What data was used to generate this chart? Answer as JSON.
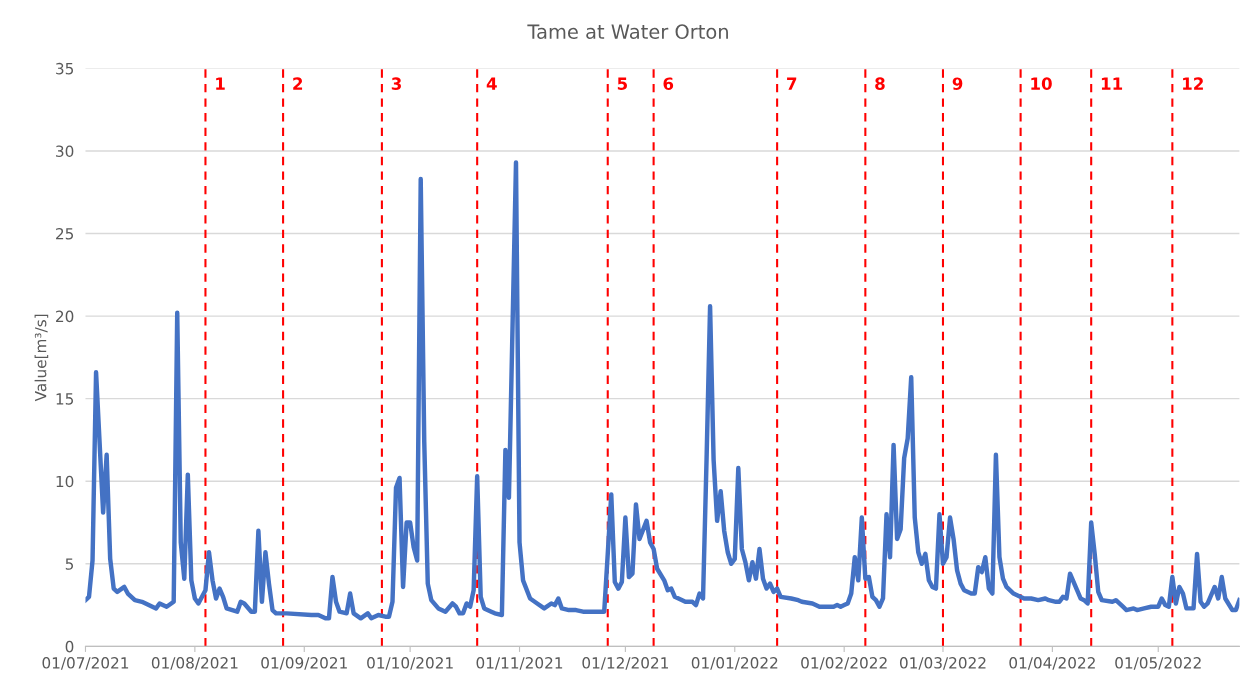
{
  "chart_data": {
    "type": "line",
    "title": "Tame at Water Orton",
    "ylabel": "Value[m³/s]",
    "series": [
      {
        "color": "#4472c4",
        "x": [
          "2021-07-01",
          "2021-07-02",
          "2021-07-03",
          "2021-07-04",
          "2021-07-06",
          "2021-07-07",
          "2021-07-08",
          "2021-07-09",
          "2021-07-10",
          "2021-07-12",
          "2021-07-13",
          "2021-07-15",
          "2021-07-17",
          "2021-07-21",
          "2021-07-22",
          "2021-07-24",
          "2021-07-26",
          "2021-07-27",
          "2021-07-28",
          "2021-07-29",
          "2021-07-30",
          "2021-07-31",
          "2021-08-01",
          "2021-08-02",
          "2021-08-04",
          "2021-08-05",
          "2021-08-06",
          "2021-08-07",
          "2021-08-08",
          "2021-08-09",
          "2021-08-10",
          "2021-08-13",
          "2021-08-14",
          "2021-08-15",
          "2021-08-17",
          "2021-08-18",
          "2021-08-19",
          "2021-08-20",
          "2021-08-21",
          "2021-08-22",
          "2021-08-23",
          "2021-08-24",
          "2021-08-27",
          "2021-09-03",
          "2021-09-05",
          "2021-09-07",
          "2021-09-08",
          "2021-09-09",
          "2021-09-10",
          "2021-09-11",
          "2021-09-13",
          "2021-09-14",
          "2021-09-15",
          "2021-09-17",
          "2021-09-19",
          "2021-09-20",
          "2021-09-22",
          "2021-09-24",
          "2021-09-25",
          "2021-09-26",
          "2021-09-27",
          "2021-09-28",
          "2021-09-29",
          "2021-09-30",
          "2021-10-01",
          "2021-10-02",
          "2021-10-03",
          "2021-10-04",
          "2021-10-05",
          "2021-10-06",
          "2021-10-07",
          "2021-10-09",
          "2021-10-11",
          "2021-10-13",
          "2021-10-14",
          "2021-10-15",
          "2021-10-16",
          "2021-10-17",
          "2021-10-18",
          "2021-10-19",
          "2021-10-20",
          "2021-10-21",
          "2021-10-22",
          "2021-10-24",
          "2021-10-25",
          "2021-10-27",
          "2021-10-28",
          "2021-10-29",
          "2021-10-31",
          "2021-11-01",
          "2021-11-02",
          "2021-11-04",
          "2021-11-06",
          "2021-11-08",
          "2021-11-10",
          "2021-11-11",
          "2021-11-12",
          "2021-11-13",
          "2021-11-15",
          "2021-11-17",
          "2021-11-19",
          "2021-11-21",
          "2021-11-23",
          "2021-11-25",
          "2021-11-26",
          "2021-11-27",
          "2021-11-28",
          "2021-11-29",
          "2021-11-30",
          "2021-12-01",
          "2021-12-02",
          "2021-12-03",
          "2021-12-04",
          "2021-12-05",
          "2021-12-07",
          "2021-12-08",
          "2021-12-09",
          "2021-12-10",
          "2021-12-12",
          "2021-12-13",
          "2021-12-14",
          "2021-12-15",
          "2021-12-18",
          "2021-12-20",
          "2021-12-21",
          "2021-12-22",
          "2021-12-23",
          "2021-12-24",
          "2021-12-25",
          "2021-12-26",
          "2021-12-27",
          "2021-12-28",
          "2021-12-29",
          "2021-12-30",
          "2021-12-31",
          "2022-01-01",
          "2022-01-02",
          "2022-01-03",
          "2022-01-04",
          "2022-01-05",
          "2022-01-06",
          "2022-01-07",
          "2022-01-08",
          "2022-01-09",
          "2022-01-10",
          "2022-01-11",
          "2022-01-12",
          "2022-01-13",
          "2022-01-14",
          "2022-01-17",
          "2022-01-19",
          "2022-01-20",
          "2022-01-23",
          "2022-01-25",
          "2022-01-27",
          "2022-01-29",
          "2022-01-30",
          "2022-01-31",
          "2022-02-01",
          "2022-02-02",
          "2022-02-03",
          "2022-02-04",
          "2022-02-05",
          "2022-02-06",
          "2022-02-07",
          "2022-02-08",
          "2022-02-09",
          "2022-02-10",
          "2022-02-11",
          "2022-02-12",
          "2022-02-13",
          "2022-02-14",
          "2022-02-15",
          "2022-02-16",
          "2022-02-17",
          "2022-02-18",
          "2022-02-19",
          "2022-02-20",
          "2022-02-21",
          "2022-02-22",
          "2022-02-23",
          "2022-02-24",
          "2022-02-25",
          "2022-02-26",
          "2022-02-27",
          "2022-02-28",
          "2022-03-01",
          "2022-03-02",
          "2022-03-03",
          "2022-03-04",
          "2022-03-05",
          "2022-03-06",
          "2022-03-07",
          "2022-03-09",
          "2022-03-10",
          "2022-03-11",
          "2022-03-12",
          "2022-03-13",
          "2022-03-14",
          "2022-03-15",
          "2022-03-16",
          "2022-03-17",
          "2022-03-18",
          "2022-03-19",
          "2022-03-21",
          "2022-03-22",
          "2022-03-24",
          "2022-03-26",
          "2022-03-28",
          "2022-03-30",
          "2022-03-31",
          "2022-04-02",
          "2022-04-03",
          "2022-04-04",
          "2022-04-05",
          "2022-04-06",
          "2022-04-08",
          "2022-04-09",
          "2022-04-10",
          "2022-04-11",
          "2022-04-12",
          "2022-04-13",
          "2022-04-14",
          "2022-04-15",
          "2022-04-18",
          "2022-04-19",
          "2022-04-21",
          "2022-04-22",
          "2022-04-24",
          "2022-04-25",
          "2022-04-27",
          "2022-04-29",
          "2022-04-30",
          "2022-05-01",
          "2022-05-02",
          "2022-05-03",
          "2022-05-04",
          "2022-05-05",
          "2022-05-06",
          "2022-05-07",
          "2022-05-08",
          "2022-05-09",
          "2022-05-11",
          "2022-05-12",
          "2022-05-13",
          "2022-05-14",
          "2022-05-15",
          "2022-05-17",
          "2022-05-18",
          "2022-05-19",
          "2022-05-20",
          "2022-05-22",
          "2022-05-23",
          "2022-05-24"
        ],
        "values": [
          2.8,
          3.0,
          5.2,
          16.6,
          8.1,
          11.6,
          5.3,
          3.5,
          3.3,
          3.6,
          3.2,
          2.8,
          2.7,
          2.3,
          2.6,
          2.4,
          2.7,
          20.2,
          6.3,
          4.1,
          10.4,
          4.0,
          2.9,
          2.6,
          3.4,
          5.7,
          4.0,
          2.9,
          3.5,
          3.0,
          2.3,
          2.1,
          2.7,
          2.6,
          2.1,
          2.1,
          7.0,
          2.7,
          5.7,
          3.8,
          2.2,
          2.0,
          2.0,
          1.9,
          1.9,
          1.7,
          1.7,
          4.2,
          2.7,
          2.1,
          2.0,
          3.2,
          2.0,
          1.7,
          2.0,
          1.7,
          1.9,
          1.8,
          1.8,
          2.7,
          9.6,
          10.2,
          3.6,
          7.5,
          7.5,
          6.0,
          5.2,
          28.3,
          12.4,
          3.8,
          2.8,
          2.3,
          2.1,
          2.6,
          2.4,
          2.0,
          2.0,
          2.6,
          2.4,
          3.4,
          10.3,
          3.0,
          2.3,
          2.1,
          2.0,
          1.9,
          11.9,
          9.0,
          29.3,
          6.3,
          4.0,
          2.9,
          2.6,
          2.3,
          2.6,
          2.5,
          2.9,
          2.3,
          2.2,
          2.2,
          2.1,
          2.1,
          2.1,
          2.1,
          5.6,
          9.2,
          3.9,
          3.5,
          3.9,
          7.8,
          4.2,
          4.4,
          8.6,
          6.5,
          7.6,
          6.3,
          5.9,
          4.7,
          4.0,
          3.4,
          3.5,
          3.0,
          2.7,
          2.7,
          2.5,
          3.2,
          2.9,
          11.3,
          20.6,
          11.3,
          7.6,
          9.4,
          7.0,
          5.7,
          5.0,
          5.3,
          10.8,
          5.9,
          5.1,
          4.0,
          5.1,
          4.1,
          5.9,
          4.1,
          3.5,
          3.8,
          3.3,
          3.5,
          3.0,
          2.9,
          2.8,
          2.7,
          2.6,
          2.4,
          2.4,
          2.4,
          2.5,
          2.4,
          2.5,
          2.6,
          3.2,
          5.4,
          4.0,
          7.8,
          4.1,
          4.2,
          3.0,
          2.8,
          2.4,
          2.9,
          8.0,
          5.4,
          12.2,
          6.5,
          7.1,
          11.4,
          12.6,
          16.3,
          7.8,
          5.7,
          5.0,
          5.6,
          4.0,
          3.6,
          3.5,
          8.0,
          5.0,
          5.4,
          7.8,
          6.5,
          4.6,
          3.8,
          3.4,
          3.2,
          3.2,
          4.8,
          4.5,
          5.4,
          3.5,
          3.2,
          11.6,
          5.4,
          4.1,
          3.6,
          3.2,
          3.1,
          2.9,
          2.9,
          2.8,
          2.9,
          2.8,
          2.7,
          2.7,
          3.0,
          2.9,
          4.4,
          3.4,
          2.9,
          2.8,
          2.6,
          7.5,
          5.6,
          3.3,
          2.8,
          2.7,
          2.8,
          2.4,
          2.2,
          2.3,
          2.2,
          2.3,
          2.4,
          2.4,
          2.4,
          2.9,
          2.5,
          2.4,
          4.2,
          2.6,
          3.6,
          3.2,
          2.3,
          2.3,
          5.6,
          2.7,
          2.4,
          2.6,
          3.6,
          2.9,
          4.2,
          2.9,
          2.2,
          2.2,
          2.8
        ]
      }
    ],
    "xlim": [
      "2021-07-01",
      "2022-05-24"
    ],
    "xticks": [
      {
        "value": "2021-07-01",
        "label": "01/07/2021"
      },
      {
        "value": "2021-08-01",
        "label": "01/08/2021"
      },
      {
        "value": "2021-09-01",
        "label": "01/09/2021"
      },
      {
        "value": "2021-10-01",
        "label": "01/10/2021"
      },
      {
        "value": "2021-11-01",
        "label": "01/11/2021"
      },
      {
        "value": "2021-12-01",
        "label": "01/12/2021"
      },
      {
        "value": "2022-01-01",
        "label": "01/01/2022"
      },
      {
        "value": "2022-02-01",
        "label": "01/02/2022"
      },
      {
        "value": "2022-03-01",
        "label": "01/03/2022"
      },
      {
        "value": "2022-04-01",
        "label": "01/04/2022"
      },
      {
        "value": "2022-05-01",
        "label": "01/05/2022"
      }
    ],
    "ylim": [
      0,
      35
    ],
    "yticks": [
      0,
      5,
      10,
      15,
      20,
      25,
      30,
      35
    ],
    "grid": "y",
    "marker": "none",
    "line_style": "solid",
    "ref_lines": [
      {
        "axis": "x",
        "value": "2021-08-04",
        "label": "1",
        "color": "#ff0000",
        "line_style": "dashed"
      },
      {
        "axis": "x",
        "value": "2021-08-26",
        "label": "2",
        "color": "#ff0000",
        "line_style": "dashed"
      },
      {
        "axis": "x",
        "value": "2021-09-23",
        "label": "3",
        "color": "#ff0000",
        "line_style": "dashed"
      },
      {
        "axis": "x",
        "value": "2021-10-20",
        "label": "4",
        "color": "#ff0000",
        "line_style": "dashed"
      },
      {
        "axis": "x",
        "value": "2021-11-26",
        "label": "5",
        "color": "#ff0000",
        "line_style": "dashed"
      },
      {
        "axis": "x",
        "value": "2021-12-09",
        "label": "6",
        "color": "#ff0000",
        "line_style": "dashed"
      },
      {
        "axis": "x",
        "value": "2022-01-13",
        "label": "7",
        "color": "#ff0000",
        "line_style": "dashed"
      },
      {
        "axis": "x",
        "value": "2022-02-07",
        "label": "8",
        "color": "#ff0000",
        "line_style": "dashed"
      },
      {
        "axis": "x",
        "value": "2022-03-01",
        "label": "9",
        "color": "#ff0000",
        "line_style": "dashed"
      },
      {
        "axis": "x",
        "value": "2022-03-23",
        "label": "10",
        "color": "#ff0000",
        "line_style": "dashed"
      },
      {
        "axis": "x",
        "value": "2022-04-12",
        "label": "11",
        "color": "#ff0000",
        "line_style": "dashed"
      },
      {
        "axis": "x",
        "value": "2022-05-05",
        "label": "12",
        "color": "#ff0000",
        "line_style": "dashed"
      }
    ]
  }
}
